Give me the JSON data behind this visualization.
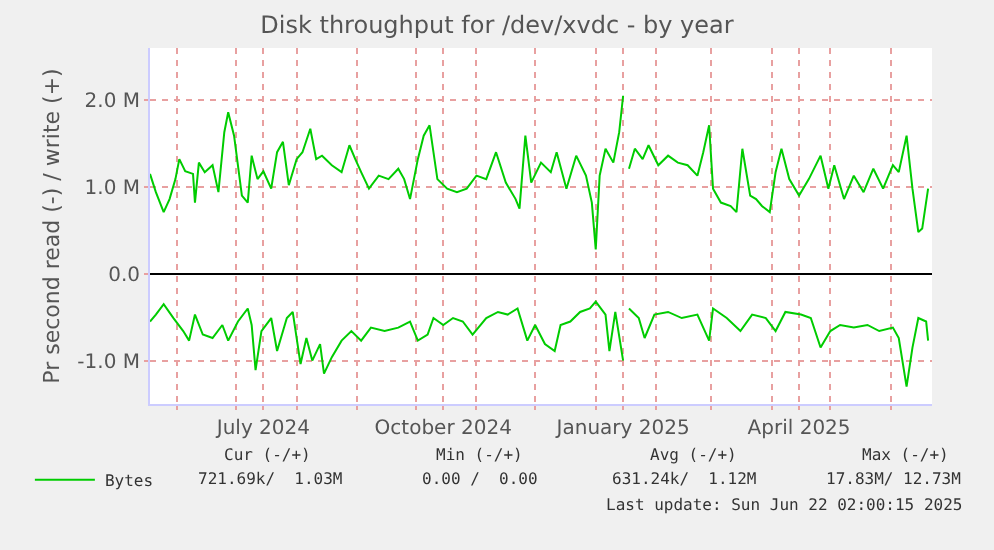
{
  "chart_data": {
    "type": "line",
    "title": "Disk throughput for /dev/xvdc - by year",
    "ylabel": "Pr second read (-) / write (+)",
    "xlim": [
      "2024-05-18",
      "2025-06-22"
    ],
    "xticks": [
      {
        "value": "2024-06-01",
        "label": null
      },
      {
        "value": "2024-07-01",
        "label": null
      },
      {
        "value": "2024-07-15",
        "label": "July 2024"
      },
      {
        "value": "2024-08-01",
        "label": null
      },
      {
        "value": "2024-09-01",
        "label": null
      },
      {
        "value": "2024-10-01",
        "label": null
      },
      {
        "value": "2024-10-15",
        "label": "October 2024"
      },
      {
        "value": "2024-11-01",
        "label": null
      },
      {
        "value": "2024-12-01",
        "label": null
      },
      {
        "value": "2025-01-01",
        "label": null
      },
      {
        "value": "2025-01-15",
        "label": "January 2025"
      },
      {
        "value": "2025-02-01",
        "label": null
      },
      {
        "value": "2025-03-01",
        "label": null
      },
      {
        "value": "2025-04-01",
        "label": null
      },
      {
        "value": "2025-04-15",
        "label": "April 2025"
      },
      {
        "value": "2025-05-01",
        "label": null
      },
      {
        "value": "2025-06-01",
        "label": null
      }
    ],
    "ylim": [
      -1.5,
      2.6
    ],
    "yticks": [
      {
        "value": -1,
        "label": "-1.0 M"
      },
      {
        "value": 0,
        "label": "0.0"
      },
      {
        "value": 1,
        "label": "1.0 M"
      },
      {
        "value": 2,
        "label": "2.0 M"
      }
    ],
    "grid": true,
    "legend": "bottom left",
    "marker": "none",
    "line_style": "solid",
    "series": [
      {
        "name": "Bytes",
        "color": "#00cc00",
        "x": [
          "2024-05-18",
          "2024-05-21",
          "2024-05-25",
          "2024-05-28",
          "2024-05-31",
          "2024-06-02",
          "2024-06-05",
          "2024-06-09",
          "2024-06-10",
          "2024-06-12",
          "2024-06-15",
          "2024-06-19",
          "2024-06-22",
          "2024-06-25",
          "2024-06-27",
          "2024-06-30",
          "2024-07-04",
          "2024-07-07",
          "2024-07-09",
          "2024-07-12",
          "2024-07-15",
          "2024-07-19",
          "2024-07-22",
          "2024-07-25",
          "2024-07-28",
          "2024-08-01",
          "2024-08-04",
          "2024-08-08",
          "2024-08-11",
          "2024-08-14",
          "2024-08-19",
          "2024-08-24",
          "2024-08-28",
          "2024-08-31",
          "2024-09-03",
          "2024-09-07",
          "2024-09-12",
          "2024-09-17",
          "2024-09-22",
          "2024-09-25",
          "2024-09-28",
          "2024-10-02",
          "2024-10-05",
          "2024-10-08",
          "2024-10-12",
          "2024-10-17",
          "2024-10-22",
          "2024-10-27",
          "2024-11-01",
          "2024-11-06",
          "2024-11-11",
          "2024-11-16",
          "2024-11-21",
          "2024-11-23",
          "2024-11-26",
          "2024-11-29",
          "2024-12-04",
          "2024-12-09",
          "2024-12-12",
          "2024-12-17",
          "2024-12-22",
          "2024-12-27",
          "2024-12-30",
          "2025-01-01",
          "2025-01-03",
          "2025-01-06",
          "2025-01-10",
          "2025-01-13",
          "2025-01-15",
          "2025-01-16",
          "2025-01-18",
          "2025-01-21",
          "2025-01-25",
          "2025-01-28",
          "2025-02-02",
          "2025-02-07",
          "2025-02-12",
          "2025-02-17",
          "2025-02-22",
          "2025-02-25",
          "2025-02-28",
          "2025-03-02",
          "2025-03-06",
          "2025-03-11",
          "2025-03-14",
          "2025-03-17",
          "2025-03-21",
          "2025-03-24",
          "2025-03-27",
          "2025-03-31",
          "2025-04-03",
          "2025-04-06",
          "2025-04-10",
          "2025-04-15",
          "2025-04-20",
          "2025-04-26",
          "2025-04-30",
          "2025-05-03",
          "2025-05-08",
          "2025-05-13",
          "2025-05-18",
          "2025-05-23",
          "2025-05-28",
          "2025-06-02",
          "2025-06-05",
          "2025-06-09",
          "2025-06-12",
          "2025-06-15",
          "2025-06-17",
          "2025-06-20"
        ],
        "values": [
          1.15,
          0.94,
          0.71,
          0.86,
          1.09,
          1.32,
          1.18,
          1.15,
          0.82,
          1.28,
          1.17,
          1.25,
          0.94,
          1.63,
          1.86,
          1.59,
          0.9,
          0.82,
          1.36,
          1.09,
          1.18,
          0.98,
          1.4,
          1.52,
          1.02,
          1.32,
          1.4,
          1.67,
          1.32,
          1.36,
          1.25,
          1.17,
          1.48,
          1.32,
          1.17,
          0.98,
          1.13,
          1.09,
          1.21,
          1.09,
          0.86,
          1.32,
          1.59,
          1.71,
          1.09,
          0.98,
          0.94,
          0.98,
          1.13,
          1.09,
          1.4,
          1.05,
          0.86,
          0.75,
          1.59,
          1.05,
          1.28,
          1.17,
          1.4,
          0.98,
          1.36,
          1.13,
          0.82,
          0.28,
          1.13,
          1.44,
          1.28,
          1.63,
          2.05,
          null,
          1.21,
          1.44,
          1.32,
          1.48,
          1.25,
          1.36,
          1.28,
          1.25,
          1.13,
          1.4,
          1.71,
          0.98,
          0.82,
          0.78,
          0.71,
          1.44,
          0.9,
          0.86,
          0.78,
          0.71,
          1.17,
          1.44,
          1.09,
          0.9,
          1.09,
          1.36,
          0.98,
          1.25,
          0.86,
          1.13,
          0.94,
          1.21,
          0.98,
          1.25,
          1.17,
          1.59,
          0.98,
          0.48,
          0.52,
          0.98
        ]
      },
      {
        "color": "#00cc00",
        "x": [
          "2024-05-18",
          "2024-05-21",
          "2024-05-25",
          "2024-05-30",
          "2024-06-04",
          "2024-06-07",
          "2024-06-10",
          "2024-06-14",
          "2024-06-19",
          "2024-06-24",
          "2024-06-27",
          "2024-07-02",
          "2024-07-07",
          "2024-07-09",
          "2024-07-11",
          "2024-07-14",
          "2024-07-19",
          "2024-07-22",
          "2024-07-27",
          "2024-07-30",
          "2024-08-03",
          "2024-08-06",
          "2024-08-09",
          "2024-08-13",
          "2024-08-15",
          "2024-08-19",
          "2024-08-24",
          "2024-08-29",
          "2024-09-03",
          "2024-09-08",
          "2024-09-15",
          "2024-09-22",
          "2024-09-28",
          "2024-10-02",
          "2024-10-07",
          "2024-10-10",
          "2024-10-15",
          "2024-10-20",
          "2024-10-25",
          "2024-10-30",
          "2024-11-06",
          "2024-11-12",
          "2024-11-17",
          "2024-11-22",
          "2024-11-27",
          "2024-12-01",
          "2024-12-06",
          "2024-12-11",
          "2024-12-14",
          "2024-12-19",
          "2024-12-24",
          "2024-12-29",
          "2025-01-01",
          "2025-01-06",
          "2025-01-08",
          "2025-01-11",
          "2025-01-15",
          "2025-01-16",
          "2025-01-18",
          "2025-01-23",
          "2025-01-26",
          "2025-01-31",
          "2025-02-07",
          "2025-02-14",
          "2025-02-22",
          "2025-02-28",
          "2025-03-02",
          "2025-03-09",
          "2025-03-16",
          "2025-03-22",
          "2025-03-29",
          "2025-04-03",
          "2025-04-08",
          "2025-04-16",
          "2025-04-21",
          "2025-04-26",
          "2025-05-01",
          "2025-05-06",
          "2025-05-13",
          "2025-05-20",
          "2025-05-26",
          "2025-06-02",
          "2025-06-05",
          "2025-06-09",
          "2025-06-12",
          "2025-06-15",
          "2025-06-19",
          "2025-06-20"
        ],
        "values": [
          -0.55,
          -0.47,
          -0.35,
          -0.51,
          -0.66,
          -0.77,
          -0.47,
          -0.7,
          -0.74,
          -0.59,
          -0.77,
          -0.55,
          -0.4,
          -0.59,
          -1.11,
          -0.66,
          -0.51,
          -0.89,
          -0.51,
          -0.44,
          -1.04,
          -0.74,
          -1.0,
          -0.81,
          -1.15,
          -0.96,
          -0.77,
          -0.66,
          -0.77,
          -0.62,
          -0.66,
          -0.62,
          -0.55,
          -0.77,
          -0.7,
          -0.51,
          -0.59,
          -0.51,
          -0.55,
          -0.7,
          -0.51,
          -0.44,
          -0.47,
          -0.4,
          -0.77,
          -0.59,
          -0.81,
          -0.89,
          -0.59,
          -0.55,
          -0.44,
          -0.4,
          -0.32,
          -0.47,
          -0.89,
          -0.44,
          -1.0,
          null,
          -0.4,
          -0.51,
          -0.74,
          -0.47,
          -0.44,
          -0.51,
          -0.47,
          -0.77,
          -0.4,
          -0.51,
          -0.66,
          -0.47,
          -0.51,
          -0.66,
          -0.44,
          -0.47,
          -0.51,
          -0.85,
          -0.66,
          -0.59,
          -0.62,
          -0.59,
          -0.66,
          -0.62,
          -0.74,
          -1.3,
          -0.85,
          -0.51,
          -0.55,
          -0.77
        ]
      }
    ],
    "annotations": [
      "Cur (-/+)",
      "Min (-/+)",
      "Avg (-/+)",
      "Max (-/+)",
      "721.69k/  1.03M",
      "0.00 /  0.00",
      "631.24k/  1.12M",
      "17.83M/ 12.73M",
      "Last update: Sun Jun 22 02:00:15 2025"
    ]
  }
}
